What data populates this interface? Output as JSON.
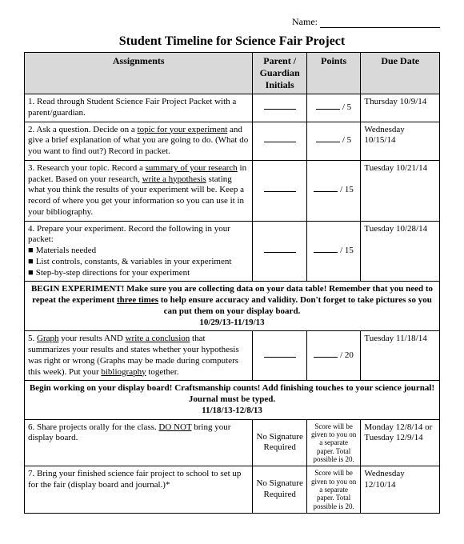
{
  "name_label": "Name:",
  "title": "Student Timeline for Science Fair Project",
  "headers": {
    "assignments": "Assignments",
    "initials": "Parent / Guardian Initials",
    "points": "Points",
    "due": "Due Date"
  },
  "row1": {
    "text_a": "1. Read through Student Science Fair Project Packet with a parent/guardian.",
    "points": "/ 5",
    "due": "Thursday 10/9/14"
  },
  "row2": {
    "text_a": "2. Ask a question. Decide on a ",
    "u1": "topic for your experiment",
    "text_b": " and give a brief explanation of what you are going to do. (What do you want to find out?) Record in packet.",
    "points": "/ 5",
    "due": "Wednesday 10/15/14"
  },
  "row3": {
    "text_a": "3. Research your topic. Record a ",
    "u1": "summary of your research",
    "text_b": " in packet. Based on your research, ",
    "u2": "write a hypothesis",
    "text_c": " stating what you think the results of your experiment will be. Keep a record of where you get your information so you can use it in your bibliography.",
    "points": "/ 15",
    "due": "Tuesday 10/21/14"
  },
  "row4": {
    "text_a": "4. Prepare your experiment. Record the following in your packet:",
    "b1": "Materials needed",
    "b2": "List controls, constants, & variables in your experiment",
    "b3": "Step-by-step directions for your experiment",
    "points": "/ 15",
    "due": "Tuesday 10/28/14"
  },
  "banner1": {
    "text_a": "BEGIN EXPERIMENT!  Make sure you are collecting data on your data table! Remember that you need to repeat the experiment ",
    "u1": "three times",
    "text_b": " to help ensure accuracy and validity. Don't forget to take pictures so you can put them on your display board.",
    "dates": "10/29/13-11/19/13"
  },
  "row5": {
    "text_a": "5. ",
    "u1": "Graph",
    "text_b": " your results AND ",
    "u2": "write a conclusion",
    "text_c": " that summarizes your results and states whether your hypothesis was right or wrong (Graphs may be made during computers this week). Put your ",
    "u3": "bibliography",
    "text_d": " together.",
    "points": "/ 20",
    "due": "Tuesday 11/18/14"
  },
  "banner2": {
    "text": "Begin working on your display board! Craftsmanship counts! Add finishing touches to your science journal! Journal must be typed.",
    "dates": "11/18/13-12/8/13"
  },
  "row6": {
    "text_a": "6. Share projects orally for the class. ",
    "u1": "DO NOT",
    "text_b": " bring your display board.",
    "init": "No Signature Required",
    "points": "Score will be given to you on a separate paper. Total possible is 20.",
    "due": "Monday 12/8/14 or Tuesday 12/9/14"
  },
  "row7": {
    "text": "7. Bring your finished science fair project to school to set up for the fair (display board and journal.)*",
    "init": "No Signature Required",
    "points": "Score will be given to you on a separate paper. Total possible is 20.",
    "due": "Wednesday 12/10/14"
  }
}
